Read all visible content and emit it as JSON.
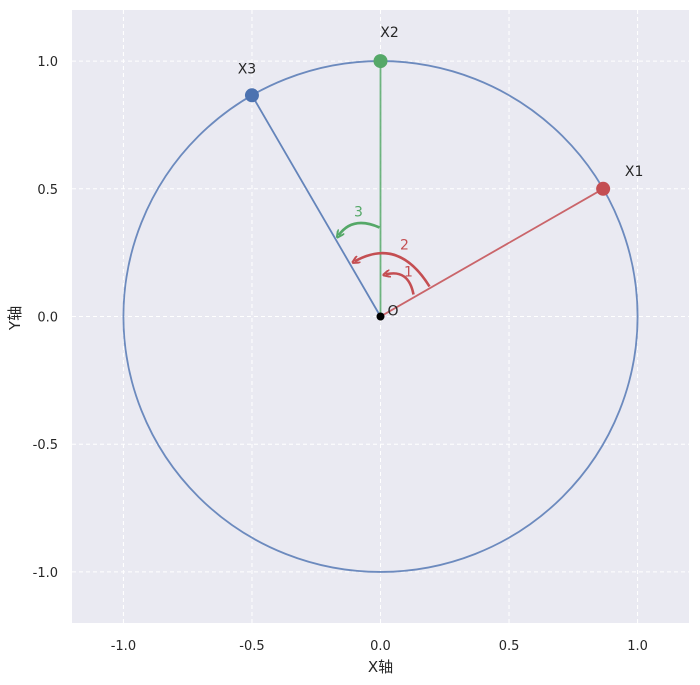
{
  "chart_data": {
    "type": "diagram",
    "xlabel": "X轴",
    "ylabel": "Y轴",
    "xlim": [
      -1.2,
      1.2
    ],
    "ylim": [
      -1.2,
      1.2
    ],
    "xticks": [
      "-1.0",
      "-0.5",
      "0.0",
      "0.5",
      "1.0"
    ],
    "yticks": [
      "-1.0",
      "-0.5",
      "0.0",
      "0.5",
      "1.0"
    ],
    "grid": true,
    "circle": {
      "center": [
        0,
        0
      ],
      "radius": 1,
      "color": "#4c72b0"
    },
    "origin": {
      "label": "O",
      "x": 0,
      "y": 0
    },
    "points": [
      {
        "label": "X1",
        "x": 0.866,
        "y": 0.5,
        "color": "#c44e52",
        "line_color": "#c44e52"
      },
      {
        "label": "X2",
        "x": 0.0,
        "y": 1.0,
        "color": "#55a868",
        "line_color": "#55a868"
      },
      {
        "label": "X3",
        "x": -0.5,
        "y": 0.866,
        "color": "#4c72b0",
        "line_color": "#4c72b0"
      }
    ],
    "rotation_arrows": [
      {
        "label": "1",
        "color": "#c44e52"
      },
      {
        "label": "2",
        "color": "#c44e52"
      },
      {
        "label": "3",
        "color": "#55a868"
      }
    ],
    "colors": {
      "background": "#eaeaf2",
      "grid": "#ffffff"
    }
  }
}
